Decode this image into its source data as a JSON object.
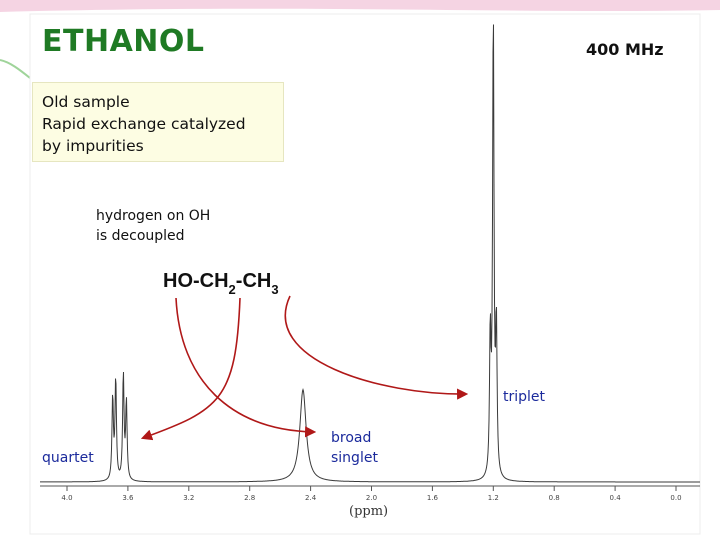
{
  "title": "ETHANOL",
  "frequency": "400 MHz",
  "note_lines": [
    "Old sample",
    "Rapid exchange catalyzed",
    "by impurities"
  ],
  "decouple_lines": [
    "hydrogen on OH",
    "is decoupled"
  ],
  "formula": {
    "a": "HO-CH",
    "sub1": "2",
    "b": "-CH",
    "sub2": "3"
  },
  "annotations": {
    "quartet": "quartet",
    "broad_lines": [
      "broad",
      "singlet"
    ],
    "triplet": "triplet"
  },
  "colors": {
    "title": "#1f7a24",
    "arrow": "#b01818",
    "peak_labels": "#1b2a9c",
    "accent_top": "#e7a8c8"
  },
  "chart_data": {
    "type": "line",
    "xlabel": "(ppm)",
    "x_ticks": [
      "4.0",
      "3.6",
      "3.2",
      "2.8",
      "2.4",
      "2.0",
      "1.6",
      "1.2",
      "0.8",
      "0.4",
      "0.0"
    ],
    "xlim": [
      4.2,
      -0.1
    ],
    "x_reversed": true,
    "peaks": [
      {
        "name": "quartet",
        "shift_ppm": 3.65,
        "lines": [
          3.7,
          3.68,
          3.63,
          3.61
        ],
        "relative_heights": [
          0.18,
          0.22,
          0.23,
          0.17
        ]
      },
      {
        "name": "broad singlet",
        "shift_ppm": 2.45,
        "lines": [
          2.45
        ],
        "relative_heights": [
          0.2
        ]
      },
      {
        "name": "triplet",
        "shift_ppm": 1.2,
        "lines": [
          1.22,
          1.2,
          1.18
        ],
        "relative_heights": [
          0.3,
          1.0,
          0.32
        ]
      }
    ]
  }
}
